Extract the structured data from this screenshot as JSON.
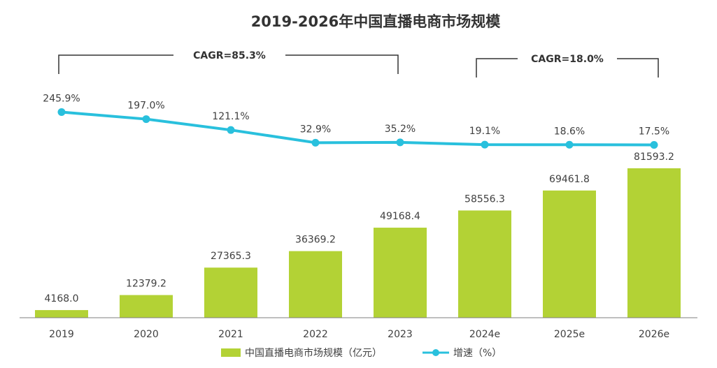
{
  "chart_data": {
    "type": "bar",
    "title": "2019-2026年中国直播电商市场规模",
    "categories": [
      "2019",
      "2020",
      "2021",
      "2022",
      "2023",
      "2024e",
      "2025e",
      "2026e"
    ],
    "series": [
      {
        "name": "中国直播电商市场规模（亿元）",
        "type": "bar",
        "values": [
          4168.0,
          12379.2,
          27365.3,
          36369.2,
          49168.4,
          58556.3,
          69461.8,
          81593.2
        ],
        "labels": [
          "4168.0",
          "12379.2",
          "27365.3",
          "36369.2",
          "49168.4",
          "58556.3",
          "69461.8",
          "81593.2"
        ]
      },
      {
        "name": "增速（%）",
        "type": "line",
        "values": [
          245.9,
          197.0,
          121.1,
          32.9,
          35.2,
          19.1,
          18.6,
          17.5
        ],
        "labels": [
          "245.9%",
          "197.0%",
          "121.1%",
          "32.9%",
          "35.2%",
          "19.1%",
          "18.6%",
          "17.5%"
        ]
      }
    ],
    "annotations": [
      {
        "text": "CAGR=85.3%",
        "from": "2019",
        "to": "2023"
      },
      {
        "text": "CAGR=18.0%",
        "from": "2024e",
        "to": "2026e"
      }
    ],
    "colors": {
      "bar": "#b3d235",
      "line": "#29c0dd",
      "text": "#404040",
      "axis": "#7f7f7f"
    },
    "grid": false,
    "legend_position": "bottom-center"
  }
}
